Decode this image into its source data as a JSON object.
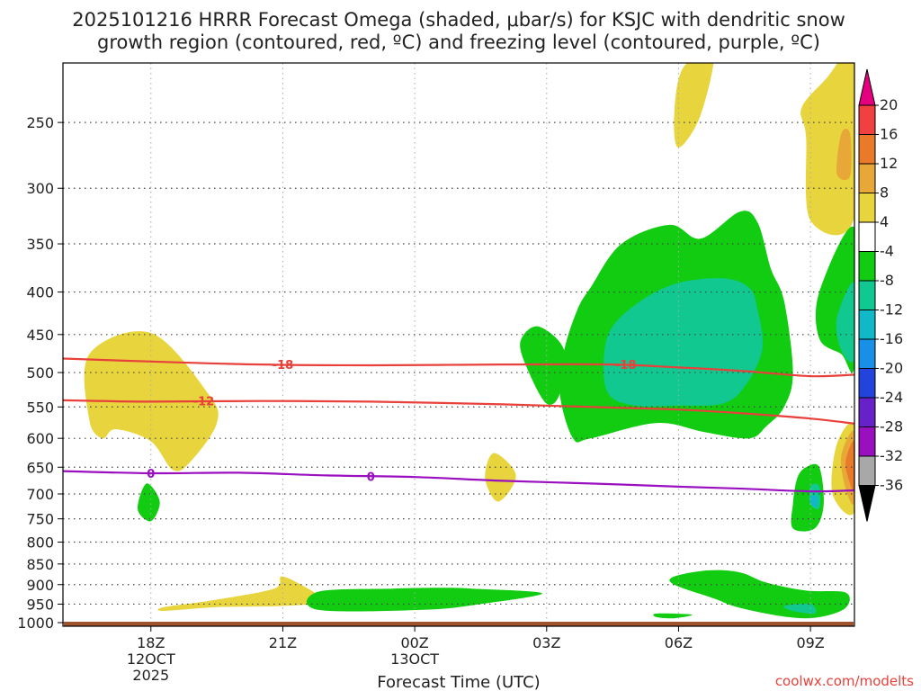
{
  "chart_data": {
    "type": "contour-time-height",
    "title_line1": "2025101216 HRRR Forecast Omega (shaded, μbar/s) for KSJC with dendritic snow",
    "title_line2": "growth region (contoured, red, ºC) and freezing level (contoured, purple, ºC)",
    "xlabel": "Forecast Time (UTC)",
    "credit": "coolwx.com/modelts",
    "x_range_hours": [
      16.0,
      34.0
    ],
    "x_ticks": [
      {
        "hour": 18,
        "label": "18Z",
        "sub1": "12OCT",
        "sub2": "2025"
      },
      {
        "hour": 21,
        "label": "21Z",
        "sub1": "",
        "sub2": ""
      },
      {
        "hour": 24,
        "label": "00Z",
        "sub1": "13OCT",
        "sub2": ""
      },
      {
        "hour": 27,
        "label": "03Z",
        "sub1": "",
        "sub2": ""
      },
      {
        "hour": 30,
        "label": "06Z",
        "sub1": "",
        "sub2": ""
      },
      {
        "hour": 33,
        "label": "09Z",
        "sub1": "",
        "sub2": ""
      }
    ],
    "y_axis": "pressure (hPa, log scale, inverted)",
    "y_range_hpa": [
      200,
      1010
    ],
    "y_ticks": [
      250,
      300,
      350,
      400,
      450,
      500,
      550,
      600,
      650,
      700,
      750,
      800,
      850,
      900,
      950,
      1000
    ],
    "ground_level_hpa": 1005,
    "colorbar": {
      "labels": [
        "20",
        "16",
        "12",
        "8",
        "4",
        "-4",
        "-8",
        "-12",
        "-16",
        "-20",
        "-24",
        "-28",
        "-32",
        "-36"
      ],
      "bins": [
        {
          "min": 20,
          "max": null,
          "color": "#e4007e"
        },
        {
          "min": 16,
          "max": 20,
          "color": "#f04040"
        },
        {
          "min": 12,
          "max": 16,
          "color": "#e87a2a"
        },
        {
          "min": 8,
          "max": 12,
          "color": "#e8a838"
        },
        {
          "min": 4,
          "max": 8,
          "color": "#e8d43c"
        },
        {
          "min": -4,
          "max": 4,
          "color": "#ffffff"
        },
        {
          "min": -8,
          "max": -4,
          "color": "#11cc11"
        },
        {
          "min": -12,
          "max": -8,
          "color": "#10c890"
        },
        {
          "min": -16,
          "max": -12,
          "color": "#10b8c8"
        },
        {
          "min": -20,
          "max": -16,
          "color": "#1890e8"
        },
        {
          "min": -24,
          "max": -20,
          "color": "#2244dd"
        },
        {
          "min": -28,
          "max": -24,
          "color": "#6622c8"
        },
        {
          "min": -32,
          "max": -28,
          "color": "#9a10c0"
        },
        {
          "min": -36,
          "max": -32,
          "color": "#a8a8a8"
        },
        {
          "min": null,
          "max": -36,
          "color": "#000000"
        }
      ]
    },
    "omega_regions": [
      {
        "bin": 4,
        "points": [
          [
            16.6,
            475
          ],
          [
            18.0,
            448
          ],
          [
            19.3,
            530
          ],
          [
            19.5,
            575
          ],
          [
            18.9,
            640
          ],
          [
            18.5,
            655
          ],
          [
            18.0,
            605
          ],
          [
            17.2,
            585
          ],
          [
            16.9,
            600
          ],
          [
            16.6,
            570
          ]
        ]
      },
      {
        "bin": 4,
        "points": [
          [
            18.3,
            958
          ],
          [
            19.4,
            940
          ],
          [
            20.8,
            910
          ],
          [
            21.0,
            880
          ],
          [
            21.8,
            925
          ],
          [
            22.0,
            945
          ],
          [
            21.0,
            955
          ],
          [
            19.5,
            958
          ],
          [
            18.3,
            968
          ]
        ]
      },
      {
        "bin": 4,
        "points": [
          [
            25.8,
            625
          ],
          [
            26.3,
            665
          ],
          [
            25.9,
            715
          ],
          [
            25.6,
            670
          ]
        ]
      },
      {
        "bin": 4,
        "points": [
          [
            30.1,
            215
          ],
          [
            30.8,
            205
          ],
          [
            30.5,
            245
          ],
          [
            30.0,
            268
          ],
          [
            29.9,
            245
          ]
        ]
      },
      {
        "bin": 4,
        "points": [
          [
            33.4,
            220
          ],
          [
            33.8,
            205
          ],
          [
            34.0,
            200
          ],
          [
            34.0,
            325
          ],
          [
            33.0,
            328
          ],
          [
            32.9,
            260
          ],
          [
            32.8,
            240
          ]
        ]
      },
      {
        "bin": 4,
        "points": [
          [
            34.0,
            580
          ],
          [
            33.6,
            610
          ],
          [
            33.5,
            700
          ],
          [
            34.0,
            735
          ]
        ]
      },
      {
        "bin": 3,
        "points": [
          [
            33.7,
            258
          ],
          [
            33.9,
            258
          ],
          [
            33.9,
            290
          ],
          [
            33.6,
            288
          ]
        ]
      },
      {
        "bin": 3,
        "points": [
          [
            34.0,
            590
          ],
          [
            33.7,
            630
          ],
          [
            33.8,
            690
          ],
          [
            34.0,
            715
          ]
        ]
      },
      {
        "bin": 2,
        "points": [
          [
            34.0,
            605
          ],
          [
            33.8,
            640
          ],
          [
            33.9,
            680
          ],
          [
            34.0,
            690
          ]
        ]
      },
      {
        "bin": 6,
        "points": [
          [
            17.9,
            680
          ],
          [
            18.2,
            715
          ],
          [
            18.0,
            755
          ],
          [
            17.7,
            730
          ]
        ]
      },
      {
        "bin": 6,
        "points": [
          [
            21.8,
            918
          ],
          [
            23.5,
            910
          ],
          [
            24.6,
            908
          ],
          [
            25.3,
            910
          ],
          [
            26.9,
            922
          ],
          [
            25.5,
            950
          ],
          [
            24.2,
            965
          ],
          [
            21.8,
            965
          ]
        ]
      },
      {
        "bin": 6,
        "points": [
          [
            26.4,
            460
          ],
          [
            26.8,
            440
          ],
          [
            27.4,
            470
          ],
          [
            27.3,
            530
          ],
          [
            27.0,
            545
          ],
          [
            26.6,
            500
          ]
        ]
      },
      {
        "bin": 6,
        "points": [
          [
            28.0,
            395
          ],
          [
            28.7,
            350
          ],
          [
            29.8,
            332
          ],
          [
            30.5,
            345
          ],
          [
            31.4,
            320
          ],
          [
            31.8,
            330
          ],
          [
            32.1,
            375
          ],
          [
            32.4,
            410
          ],
          [
            32.6,
            500
          ],
          [
            32.4,
            550
          ],
          [
            32.0,
            580
          ],
          [
            31.6,
            600
          ],
          [
            30.6,
            590
          ],
          [
            29.5,
            575
          ],
          [
            28.0,
            600
          ],
          [
            27.6,
            600
          ],
          [
            27.3,
            530
          ],
          [
            27.4,
            470
          ],
          [
            27.7,
            420
          ]
        ]
      },
      {
        "bin": 6,
        "points": [
          [
            34.0,
            335
          ],
          [
            33.2,
            400
          ],
          [
            33.2,
            455
          ],
          [
            33.7,
            475
          ],
          [
            34.0,
            490
          ]
        ]
      },
      {
        "bin": 6,
        "points": [
          [
            32.9,
            650
          ],
          [
            33.2,
            650
          ],
          [
            33.3,
            720
          ],
          [
            33.1,
            770
          ],
          [
            32.6,
            770
          ],
          [
            32.6,
            720
          ],
          [
            32.7,
            670
          ]
        ]
      },
      {
        "bin": 6,
        "points": [
          [
            29.9,
            880
          ],
          [
            30.7,
            865
          ],
          [
            31.4,
            870
          ],
          [
            32.0,
            895
          ],
          [
            32.9,
            915
          ],
          [
            33.8,
            920
          ],
          [
            33.8,
            960
          ],
          [
            33.2,
            985
          ],
          [
            32.5,
            985
          ],
          [
            31.4,
            960
          ],
          [
            30.8,
            935
          ],
          [
            29.9,
            900
          ]
        ]
      },
      {
        "bin": 6,
        "points": [
          [
            29.5,
            975
          ],
          [
            30.3,
            978
          ],
          [
            29.9,
            988
          ],
          [
            29.5,
            985
          ]
        ]
      },
      {
        "bin": 7,
        "points": [
          [
            28.5,
            440
          ],
          [
            29.2,
            408
          ],
          [
            30.0,
            390
          ],
          [
            31.0,
            385
          ],
          [
            31.6,
            395
          ],
          [
            31.8,
            420
          ],
          [
            31.9,
            470
          ],
          [
            31.5,
            520
          ],
          [
            31.0,
            545
          ],
          [
            30.0,
            548
          ],
          [
            29.0,
            548
          ],
          [
            28.4,
            530
          ],
          [
            28.3,
            480
          ]
        ]
      },
      {
        "bin": 7,
        "points": [
          [
            34.0,
            390
          ],
          [
            33.6,
            430
          ],
          [
            33.7,
            470
          ],
          [
            34.0,
            480
          ]
        ]
      },
      {
        "bin": 7,
        "points": [
          [
            33.0,
            685
          ],
          [
            33.2,
            685
          ],
          [
            33.2,
            728
          ],
          [
            33.0,
            720
          ]
        ]
      },
      {
        "bin": 7,
        "points": [
          [
            32.4,
            955
          ],
          [
            33.0,
            950
          ],
          [
            33.1,
            975
          ],
          [
            32.6,
            968
          ]
        ]
      },
      {
        "bin": 8,
        "points": [
          [
            33.0,
            705
          ],
          [
            33.15,
            705
          ],
          [
            33.15,
            725
          ],
          [
            33.0,
            720
          ]
        ]
      }
    ],
    "isotherms": [
      {
        "value": -18,
        "label": "-18",
        "color": "#e8403a",
        "points": [
          [
            16.0,
            481
          ],
          [
            18.0,
            485
          ],
          [
            20.5,
            489
          ],
          [
            23.0,
            490
          ],
          [
            26.0,
            489
          ],
          [
            28.5,
            489
          ],
          [
            30.0,
            493
          ],
          [
            31.5,
            498
          ],
          [
            33.0,
            505
          ],
          [
            34.0,
            503
          ]
        ],
        "label_positions": [
          [
            21.0,
            489
          ],
          [
            28.8,
            489
          ]
        ]
      },
      {
        "value": -12,
        "label": "-12",
        "color": "#e8403a",
        "points": [
          [
            16.0,
            540
          ],
          [
            18.0,
            542
          ],
          [
            20.5,
            541
          ],
          [
            23.0,
            542
          ],
          [
            26.0,
            546
          ],
          [
            28.5,
            551
          ],
          [
            30.0,
            554
          ],
          [
            31.5,
            560
          ],
          [
            33.0,
            568
          ],
          [
            34.0,
            576
          ]
        ],
        "label_positions": [
          [
            19.2,
            541
          ]
        ]
      },
      {
        "value": 0,
        "label": "0",
        "color": "#9a10c0",
        "points": [
          [
            16.0,
            657
          ],
          [
            18.0,
            661
          ],
          [
            20.0,
            660
          ],
          [
            22.0,
            665
          ],
          [
            24.0,
            668
          ],
          [
            26.0,
            675
          ],
          [
            28.0,
            680
          ],
          [
            30.0,
            686
          ],
          [
            31.5,
            690
          ],
          [
            33.0,
            695
          ],
          [
            34.0,
            693
          ]
        ],
        "label_positions": [
          [
            18.0,
            661
          ],
          [
            23.0,
            667
          ]
        ]
      }
    ]
  }
}
